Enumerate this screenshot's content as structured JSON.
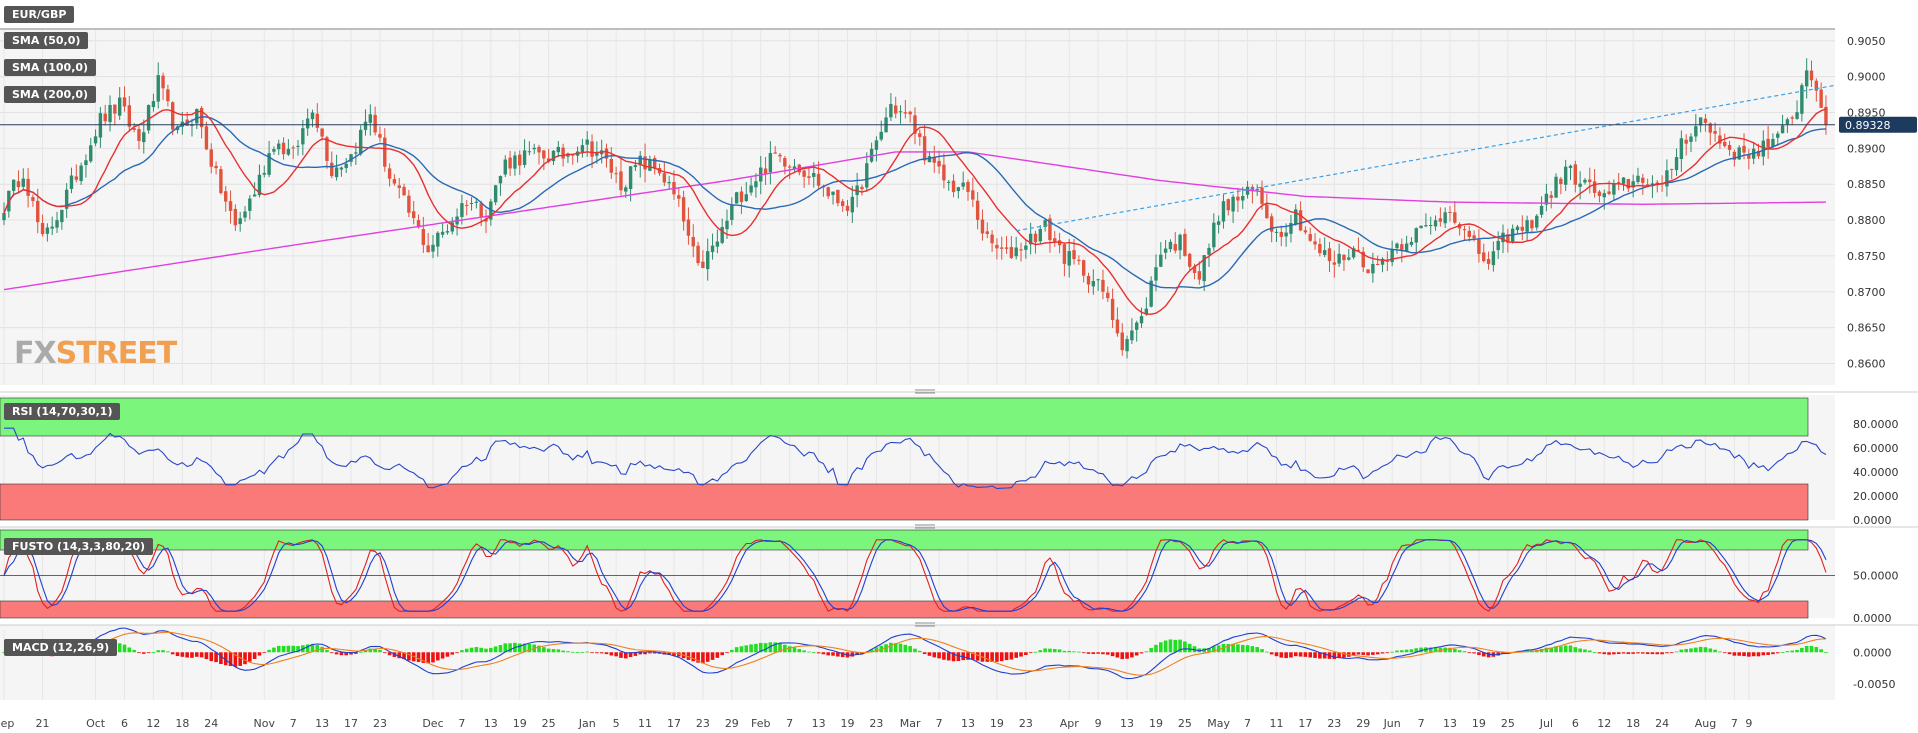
{
  "instrument": "EUR/GBP",
  "indicators": {
    "sma50": "SMA (50,0)",
    "sma100": "SMA (100,0)",
    "sma200": "SMA (200,0)",
    "rsi": "RSI (14,70,30,1)",
    "fusto": "FUSTO (14,3,3,80,20)",
    "macd": "MACD (12,26,9)"
  },
  "logo": {
    "fx": "FX",
    "street": "STREET"
  },
  "colors": {
    "bull": "#2e8b6e",
    "bear": "#e0533d",
    "sma50": "#e83030",
    "sma100": "#2a6ab4",
    "sma200": "#e040e0",
    "rsi_line": "#2948c8",
    "overbought_zone": "#7cf57c",
    "oversold_zone": "#fa7a7a",
    "macd_up": "#22dd22",
    "macd_down": "#ee1111",
    "price_tag": "#1d3a5f",
    "logo_fx": "#aaaaaa",
    "logo_street": "#f0a050"
  },
  "chart_data": [
    {
      "type": "candlestick",
      "title": "EUR/GBP",
      "ylim": [
        0.857,
        0.9065
      ],
      "yticks": [
        "0.9050",
        "0.9000",
        "0.8950",
        "0.8900",
        "0.8850",
        "0.8800",
        "0.8750",
        "0.8700",
        "0.8650",
        "0.8600"
      ],
      "ytick_values": [
        0.905,
        0.9,
        0.895,
        0.89,
        0.885,
        0.88,
        0.875,
        0.87,
        0.865,
        0.86
      ],
      "last_price": "0.89328",
      "last_value": 0.89328,
      "price_anchors": [
        [
          0,
          0.882
        ],
        [
          4,
          0.887
        ],
        [
          8,
          0.877
        ],
        [
          12,
          0.882
        ],
        [
          16,
          0.888
        ],
        [
          20,
          0.894
        ],
        [
          24,
          0.896
        ],
        [
          28,
          0.891
        ],
        [
          32,
          0.899
        ],
        [
          36,
          0.892
        ],
        [
          40,
          0.895
        ],
        [
          44,
          0.886
        ],
        [
          48,
          0.879
        ],
        [
          52,
          0.884
        ],
        [
          56,
          0.891
        ],
        [
          60,
          0.889
        ],
        [
          64,
          0.896
        ],
        [
          68,
          0.887
        ],
        [
          72,
          0.889
        ],
        [
          76,
          0.895
        ],
        [
          80,
          0.886
        ],
        [
          84,
          0.881
        ],
        [
          88,
          0.876
        ],
        [
          92,
          0.879
        ],
        [
          96,
          0.883
        ],
        [
          100,
          0.881
        ],
        [
          104,
          0.888
        ],
        [
          108,
          0.889
        ],
        [
          112,
          0.889
        ],
        [
          116,
          0.889
        ],
        [
          120,
          0.891
        ],
        [
          124,
          0.889
        ],
        [
          128,
          0.885
        ],
        [
          132,
          0.888
        ],
        [
          136,
          0.887
        ],
        [
          140,
          0.882
        ],
        [
          144,
          0.873
        ],
        [
          148,
          0.877
        ],
        [
          152,
          0.883
        ],
        [
          156,
          0.886
        ],
        [
          160,
          0.889
        ],
        [
          164,
          0.888
        ],
        [
          168,
          0.886
        ],
        [
          172,
          0.883
        ],
        [
          176,
          0.882
        ],
        [
          180,
          0.889
        ],
        [
          184,
          0.896
        ],
        [
          188,
          0.894
        ],
        [
          192,
          0.888
        ],
        [
          196,
          0.885
        ],
        [
          200,
          0.884
        ],
        [
          204,
          0.877
        ],
        [
          208,
          0.875
        ],
        [
          212,
          0.877
        ],
        [
          216,
          0.879
        ],
        [
          220,
          0.875
        ],
        [
          224,
          0.873
        ],
        [
          228,
          0.87
        ],
        [
          232,
          0.863
        ],
        [
          236,
          0.866
        ],
        [
          240,
          0.876
        ],
        [
          244,
          0.877
        ],
        [
          248,
          0.872
        ],
        [
          252,
          0.881
        ],
        [
          256,
          0.883
        ],
        [
          260,
          0.884
        ],
        [
          264,
          0.878
        ],
        [
          268,
          0.881
        ],
        [
          272,
          0.876
        ],
        [
          276,
          0.874
        ],
        [
          280,
          0.876
        ],
        [
          284,
          0.873
        ],
        [
          288,
          0.876
        ],
        [
          292,
          0.878
        ],
        [
          296,
          0.879
        ],
        [
          300,
          0.882
        ],
        [
          304,
          0.877
        ],
        [
          308,
          0.874
        ],
        [
          312,
          0.878
        ],
        [
          316,
          0.879
        ],
        [
          320,
          0.883
        ],
        [
          324,
          0.887
        ],
        [
          328,
          0.885
        ],
        [
          332,
          0.883
        ],
        [
          336,
          0.885
        ],
        [
          340,
          0.886
        ],
        [
          344,
          0.884
        ],
        [
          348,
          0.891
        ],
        [
          352,
          0.894
        ],
        [
          356,
          0.891
        ],
        [
          360,
          0.889
        ],
        [
          364,
          0.89
        ],
        [
          368,
          0.891
        ],
        [
          372,
          0.896
        ],
        [
          374,
          0.901
        ],
        [
          376,
          0.899
        ],
        [
          378,
          0.8933
        ]
      ]
    },
    {
      "type": "line",
      "title": "RSI (14,70,30,1)",
      "ylim": [
        0,
        100
      ],
      "yticks": [
        "80.0000",
        "60.0000",
        "40.0000",
        "20.0000",
        "0.0000"
      ],
      "ytick_values": [
        80,
        60,
        40,
        20,
        0
      ],
      "overbought": 70,
      "oversold": 30
    },
    {
      "type": "line",
      "title": "FUSTO (14,3,3,80,20)",
      "ylim": [
        0,
        100
      ],
      "yticks": [
        "50.0000",
        "0.0000"
      ],
      "ytick_values": [
        50,
        0
      ],
      "overbought": 80,
      "oversold": 20
    },
    {
      "type": "bar",
      "title": "MACD (12,26,9)",
      "ylim": [
        -0.0075,
        0.0035
      ],
      "yticks": [
        "0.0000",
        "-0.0050"
      ],
      "ytick_values": [
        0,
        -0.005
      ]
    }
  ],
  "x_axis": {
    "labels": [
      {
        "text": "Sep",
        "i": 0
      },
      {
        "text": "21",
        "i": 8
      },
      {
        "text": "Oct",
        "i": 19
      },
      {
        "text": "6",
        "i": 25
      },
      {
        "text": "12",
        "i": 31
      },
      {
        "text": "18",
        "i": 37
      },
      {
        "text": "24",
        "i": 43
      },
      {
        "text": "Nov",
        "i": 54
      },
      {
        "text": "7",
        "i": 60
      },
      {
        "text": "13",
        "i": 66
      },
      {
        "text": "17",
        "i": 72
      },
      {
        "text": "23",
        "i": 78
      },
      {
        "text": "Dec",
        "i": 89
      },
      {
        "text": "7",
        "i": 95
      },
      {
        "text": "13",
        "i": 101
      },
      {
        "text": "19",
        "i": 107
      },
      {
        "text": "25",
        "i": 113
      },
      {
        "text": "Jan",
        "i": 121
      },
      {
        "text": "5",
        "i": 127
      },
      {
        "text": "11",
        "i": 133
      },
      {
        "text": "17",
        "i": 139
      },
      {
        "text": "23",
        "i": 145
      },
      {
        "text": "29",
        "i": 151
      },
      {
        "text": "Feb",
        "i": 157
      },
      {
        "text": "7",
        "i": 163
      },
      {
        "text": "13",
        "i": 169
      },
      {
        "text": "19",
        "i": 175
      },
      {
        "text": "23",
        "i": 181
      },
      {
        "text": "Mar",
        "i": 188
      },
      {
        "text": "7",
        "i": 194
      },
      {
        "text": "13",
        "i": 200
      },
      {
        "text": "19",
        "i": 206
      },
      {
        "text": "23",
        "i": 212
      },
      {
        "text": "Apr",
        "i": 221
      },
      {
        "text": "9",
        "i": 227
      },
      {
        "text": "13",
        "i": 233
      },
      {
        "text": "19",
        "i": 239
      },
      {
        "text": "25",
        "i": 245
      },
      {
        "text": "May",
        "i": 252
      },
      {
        "text": "7",
        "i": 258
      },
      {
        "text": "11",
        "i": 264
      },
      {
        "text": "17",
        "i": 270
      },
      {
        "text": "23",
        "i": 276
      },
      {
        "text": "29",
        "i": 282
      },
      {
        "text": "Jun",
        "i": 288
      },
      {
        "text": "7",
        "i": 294
      },
      {
        "text": "13",
        "i": 300
      },
      {
        "text": "19",
        "i": 306
      },
      {
        "text": "25",
        "i": 312
      },
      {
        "text": "Jul",
        "i": 320
      },
      {
        "text": "6",
        "i": 326
      },
      {
        "text": "12",
        "i": 332
      },
      {
        "text": "18",
        "i": 338
      },
      {
        "text": "24",
        "i": 344
      },
      {
        "text": "Aug",
        "i": 353
      },
      {
        "text": "7",
        "i": 359
      },
      {
        "text": "9",
        "i": 362
      }
    ]
  }
}
